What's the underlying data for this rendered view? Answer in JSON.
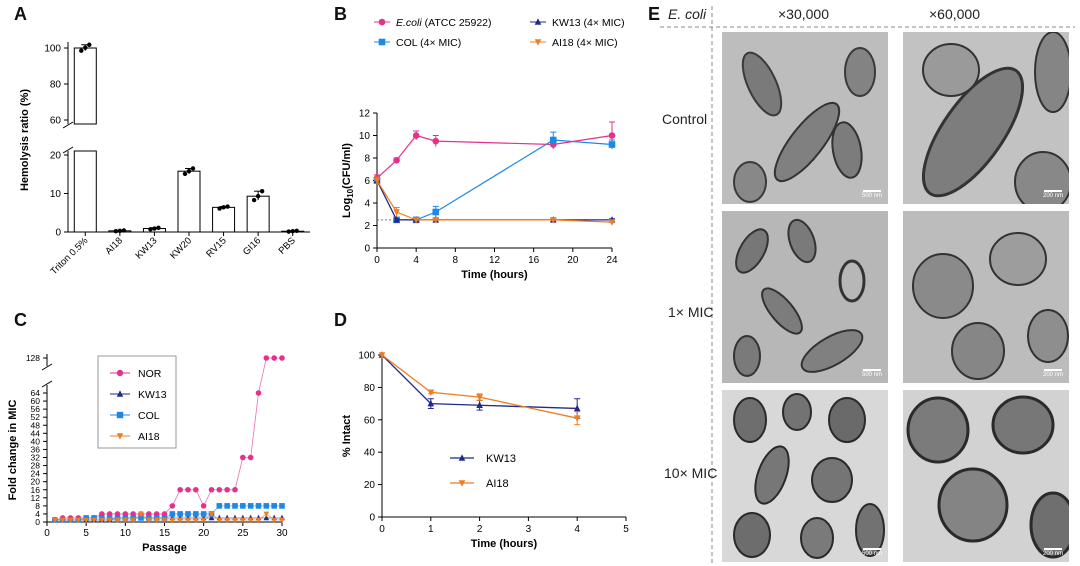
{
  "panels": {
    "a": "A",
    "b": "B",
    "c": "C",
    "d": "D",
    "e": "E"
  },
  "chart_data": [
    {
      "panel": "A",
      "type": "bar",
      "ylabel": "Hemolysis ratio (%)",
      "categories": [
        "Triton 0.5%",
        "AI18",
        "KW13",
        "KW20",
        "RV15",
        "GI16",
        "PBS"
      ],
      "values": [
        100,
        0.3,
        0.9,
        15.8,
        6.4,
        9.3,
        0.2
      ],
      "points": [
        [
          98.5,
          100.2,
          101.8
        ],
        [
          0.2,
          0.3,
          0.4
        ],
        [
          0.7,
          0.9,
          1.1
        ],
        [
          15.1,
          15.8,
          16.5
        ],
        [
          6.1,
          6.4,
          6.6
        ],
        [
          8.3,
          9.3,
          10.6
        ],
        [
          0.1,
          0.2,
          0.3
        ]
      ],
      "yticks_low": [
        0,
        10,
        20
      ],
      "yticks_high": [
        60,
        80,
        100
      ],
      "axis_break": [
        20,
        60
      ]
    },
    {
      "panel": "B",
      "type": "line",
      "xlabel": "Time (hours)",
      "ylabel_pre": "Log",
      "ylabel_sub": "10",
      "ylabel_post": "(CFU/ml)",
      "xlim": [
        0,
        24
      ],
      "ylim": [
        0,
        12
      ],
      "xticks": [
        0,
        4,
        8,
        12,
        16,
        20,
        24
      ],
      "yticks": [
        0,
        2,
        4,
        6,
        8,
        10,
        12
      ],
      "detection_limit": 2.5,
      "series": [
        {
          "name_italic": "E.coli",
          "name_rest": " (ATCC 25922)",
          "color": "#e5318c",
          "marker": "circle",
          "x": [
            0,
            2,
            4,
            6,
            18,
            24
          ],
          "y": [
            6.2,
            7.8,
            10,
            9.5,
            9.2,
            10
          ],
          "err": [
            0.3,
            0.2,
            0.4,
            0.5,
            0.4,
            1.2
          ]
        },
        {
          "name": "COL (4× MIC)",
          "color": "#1e88e5",
          "marker": "square",
          "x": [
            0,
            2,
            4,
            6,
            18,
            24
          ],
          "y": [
            6,
            2.5,
            2.5,
            3.2,
            9.6,
            9.2
          ],
          "err": [
            0.3,
            0.1,
            0.1,
            0.5,
            0.7,
            0.4
          ]
        },
        {
          "name": "KW13 (4× MIC)",
          "color": "#1f2a8a",
          "marker": "triangle-up",
          "x": [
            0,
            2,
            4,
            6,
            18,
            24
          ],
          "y": [
            6,
            2.5,
            2.5,
            2.5,
            2.5,
            2.5
          ],
          "err": [
            0.2,
            0.1,
            0.1,
            0.1,
            0.1,
            0.1
          ]
        },
        {
          "name": "AI18 (4× MIC)",
          "color": "#f07c22",
          "marker": "triangle-down",
          "x": [
            0,
            2,
            4,
            6,
            18,
            24
          ],
          "y": [
            6,
            3.2,
            2.5,
            2.5,
            2.5,
            2.3
          ],
          "err": [
            0.3,
            0.4,
            0.1,
            0.1,
            0.1,
            0.2
          ]
        }
      ]
    },
    {
      "panel": "C",
      "type": "scatter",
      "xlabel": "Passage",
      "ylabel": "Fold change in MIC",
      "xlim": [
        0,
        30
      ],
      "xticks": [
        0,
        5,
        10,
        15,
        20,
        25,
        30
      ],
      "yticks_low": [
        0,
        4,
        8,
        12,
        16,
        20,
        24,
        28,
        32,
        36,
        40,
        44,
        48,
        52,
        56,
        60,
        64
      ],
      "ytick_high": 128,
      "series": [
        {
          "name": "NOR",
          "color": "#e5318c",
          "marker": "circle",
          "x": [
            1,
            2,
            3,
            4,
            5,
            6,
            7,
            8,
            9,
            10,
            11,
            12,
            13,
            14,
            15,
            16,
            17,
            18,
            19,
            20,
            21,
            22,
            23,
            24,
            25,
            26,
            27,
            28,
            29,
            30
          ],
          "y": [
            1,
            2,
            2,
            2,
            2,
            2,
            4,
            4,
            4,
            4,
            4,
            4,
            4,
            4,
            4,
            8,
            16,
            16,
            16,
            8,
            16,
            16,
            16,
            16,
            32,
            32,
            64,
            128,
            128,
            128
          ]
        },
        {
          "name": "KW13",
          "color": "#1f2a8a",
          "marker": "triangle-up",
          "x": [
            1,
            2,
            3,
            4,
            5,
            6,
            7,
            8,
            9,
            10,
            11,
            12,
            13,
            14,
            15,
            16,
            17,
            18,
            19,
            20,
            21,
            22,
            23,
            24,
            25,
            26,
            27,
            28,
            29,
            30
          ],
          "y": [
            1,
            1,
            1,
            1,
            1,
            1,
            1,
            1,
            2,
            2,
            2,
            2,
            2,
            2,
            2,
            2,
            2,
            2,
            2,
            2,
            2,
            2,
            2,
            2,
            2,
            2,
            2,
            2,
            2,
            2
          ]
        },
        {
          "name": "COL",
          "color": "#1e88e5",
          "marker": "square",
          "x": [
            1,
            2,
            3,
            4,
            5,
            6,
            7,
            8,
            9,
            10,
            11,
            12,
            13,
            14,
            15,
            16,
            17,
            18,
            19,
            20,
            21,
            22,
            23,
            24,
            25,
            26,
            27,
            28,
            29,
            30
          ],
          "y": [
            1,
            1,
            1,
            1,
            2,
            2,
            2,
            2,
            2,
            2,
            2,
            2,
            2,
            2,
            2,
            4,
            4,
            4,
            4,
            4,
            4,
            8,
            8,
            8,
            8,
            8,
            8,
            8,
            8,
            8
          ]
        },
        {
          "name": "AI18",
          "color": "#f07c22",
          "marker": "triangle-down",
          "x": [
            1,
            2,
            3,
            4,
            5,
            6,
            7,
            8,
            9,
            10,
            11,
            12,
            13,
            14,
            15,
            16,
            17,
            18,
            19,
            20,
            21,
            22,
            23,
            24,
            25,
            26,
            27,
            28,
            29,
            30
          ],
          "y": [
            1,
            1,
            1,
            1,
            1,
            1,
            1,
            1,
            1,
            1,
            1,
            4,
            1,
            1,
            1,
            1,
            1,
            1,
            1,
            1,
            4,
            1,
            1,
            1,
            1,
            1,
            1,
            4,
            1,
            1
          ]
        }
      ]
    },
    {
      "panel": "D",
      "type": "line",
      "xlabel": "Time (hours)",
      "ylabel": "% Intact",
      "xlim": [
        0,
        5
      ],
      "ylim": [
        0,
        100
      ],
      "xticks": [
        0,
        1,
        2,
        3,
        4,
        5
      ],
      "yticks": [
        0,
        20,
        40,
        60,
        80,
        100
      ],
      "series": [
        {
          "name": "KW13",
          "color": "#1f2a8a",
          "marker": "triangle-up",
          "x": [
            0,
            1,
            2,
            4
          ],
          "y": [
            100,
            70,
            69,
            67
          ],
          "err": [
            0,
            3,
            3,
            6
          ]
        },
        {
          "name": "AI18",
          "color": "#f07c22",
          "marker": "triangle-down",
          "x": [
            0,
            1,
            2,
            4
          ],
          "y": [
            100,
            77,
            74,
            61
          ],
          "err": [
            0,
            1,
            2,
            4
          ]
        }
      ]
    }
  ],
  "tem": {
    "organism": "E. coli",
    "columns": [
      "×30,000",
      "×60,000"
    ],
    "rows": [
      "Control",
      "1× MIC",
      "10× MIC"
    ],
    "scale_left": "500 nm",
    "scale_right": "200 nm"
  }
}
